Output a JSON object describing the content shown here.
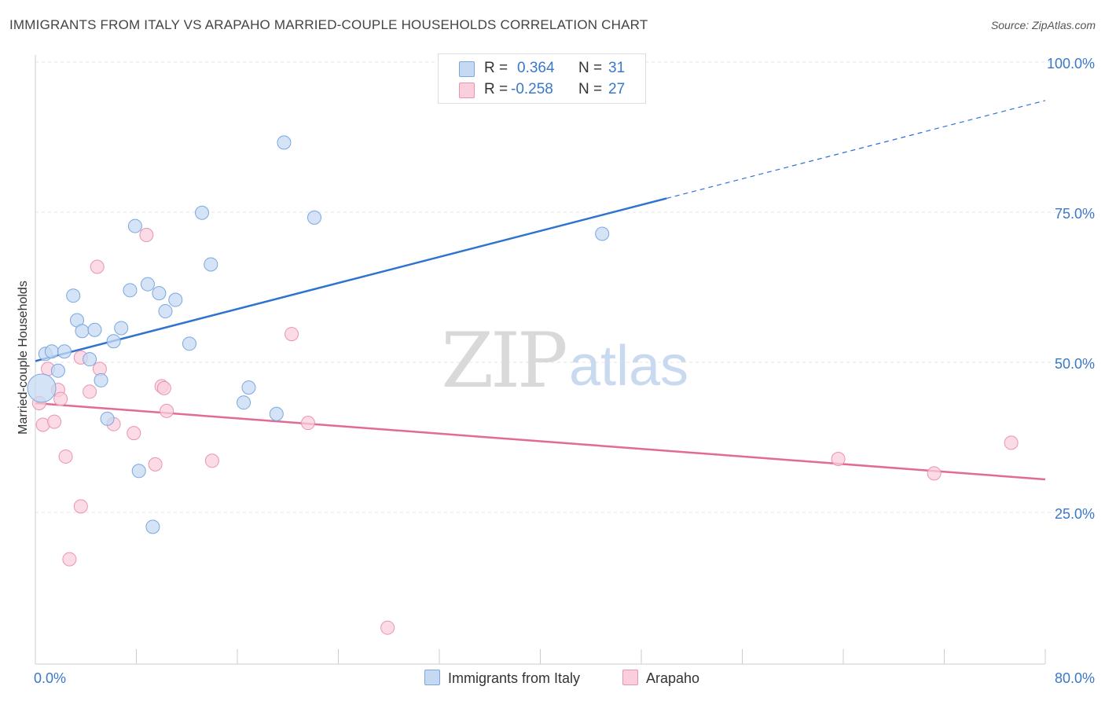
{
  "title": "IMMIGRANTS FROM ITALY VS ARAPAHO MARRIED-COUPLE HOUSEHOLDS CORRELATION CHART",
  "source": "Source: ZipAtlas.com",
  "watermark": {
    "zip": "ZIP",
    "atlas": "atlas"
  },
  "legend": {
    "rows": [
      {
        "r_label": "R =",
        "r_value": "0.364",
        "n_label": "N =",
        "n_value": "31"
      },
      {
        "r_label": "R =",
        "r_value": "-0.258",
        "n_label": "N =",
        "n_value": "27"
      }
    ]
  },
  "colors": {
    "blue_fill": "#c5d9f3",
    "blue_stroke": "#7aa7e0",
    "blue_line": "#2e73cf",
    "pink_fill": "#f9cfdc",
    "pink_stroke": "#eb93b0",
    "pink_line": "#e26a95",
    "tick_text": "#3a78c9",
    "grid": "#e6e6e6"
  },
  "chart_data": {
    "type": "scatter",
    "title": "IMMIGRANTS FROM ITALY VS ARAPAHO MARRIED-COUPLE HOUSEHOLDS CORRELATION CHART",
    "xlabel": "",
    "ylabel": "Married-couple Households",
    "xlim": [
      0,
      80
    ],
    "ylim": [
      0,
      105
    ],
    "x_tick_labels": [
      "0.0%",
      "80.0%"
    ],
    "y_ticks": [
      25,
      50,
      75,
      100
    ],
    "y_tick_labels": [
      "25.0%",
      "50.0%",
      "75.0%",
      "100.0%"
    ],
    "grid": true,
    "legend_position": "bottom-center",
    "series": [
      {
        "name": "Immigrants from Italy",
        "color": "#7aa7e0",
        "points": [
          [
            0.5,
            45.7
          ],
          [
            0.8,
            51.4
          ],
          [
            1.3,
            51.8
          ],
          [
            1.8,
            48.6
          ],
          [
            2.3,
            51.8
          ],
          [
            3.0,
            61.1
          ],
          [
            3.3,
            57.0
          ],
          [
            3.7,
            55.2
          ],
          [
            4.3,
            50.5
          ],
          [
            4.7,
            55.4
          ],
          [
            5.2,
            47.0
          ],
          [
            5.7,
            40.6
          ],
          [
            6.2,
            53.5
          ],
          [
            6.8,
            55.7
          ],
          [
            7.5,
            62.0
          ],
          [
            7.9,
            72.7
          ],
          [
            8.2,
            31.9
          ],
          [
            8.9,
            63.0
          ],
          [
            9.3,
            22.6
          ],
          [
            9.8,
            61.5
          ],
          [
            10.3,
            58.5
          ],
          [
            11.1,
            60.4
          ],
          [
            12.2,
            53.1
          ],
          [
            13.2,
            74.9
          ],
          [
            13.9,
            66.3
          ],
          [
            16.5,
            43.3
          ],
          [
            16.9,
            45.8
          ],
          [
            19.1,
            41.4
          ],
          [
            19.7,
            86.6
          ],
          [
            22.1,
            74.1
          ],
          [
            44.9,
            71.4
          ]
        ],
        "trend": {
          "x": [
            0,
            50
          ],
          "y": [
            50.2,
            77.3
          ],
          "dashed_to": [
            80,
            93.6
          ]
        }
      },
      {
        "name": "Arapaho",
        "color": "#eb93b0",
        "points": [
          [
            0.3,
            43.2
          ],
          [
            0.6,
            39.6
          ],
          [
            1.0,
            48.9
          ],
          [
            1.5,
            40.1
          ],
          [
            1.8,
            45.4
          ],
          [
            2.0,
            43.9
          ],
          [
            2.4,
            34.3
          ],
          [
            2.7,
            17.2
          ],
          [
            3.6,
            26.0
          ],
          [
            3.6,
            50.8
          ],
          [
            4.3,
            45.1
          ],
          [
            4.9,
            65.9
          ],
          [
            5.1,
            48.9
          ],
          [
            6.2,
            39.7
          ],
          [
            7.8,
            38.2
          ],
          [
            8.8,
            71.2
          ],
          [
            9.5,
            33.0
          ],
          [
            10.0,
            46.0
          ],
          [
            10.2,
            45.7
          ],
          [
            10.4,
            41.9
          ],
          [
            14.0,
            33.6
          ],
          [
            20.3,
            54.7
          ],
          [
            21.6,
            39.9
          ],
          [
            27.9,
            5.8
          ],
          [
            63.6,
            33.9
          ],
          [
            71.2,
            31.5
          ],
          [
            77.3,
            36.6
          ]
        ],
        "trend": {
          "x": [
            0,
            80
          ],
          "y": [
            43.2,
            30.5
          ]
        }
      }
    ]
  }
}
